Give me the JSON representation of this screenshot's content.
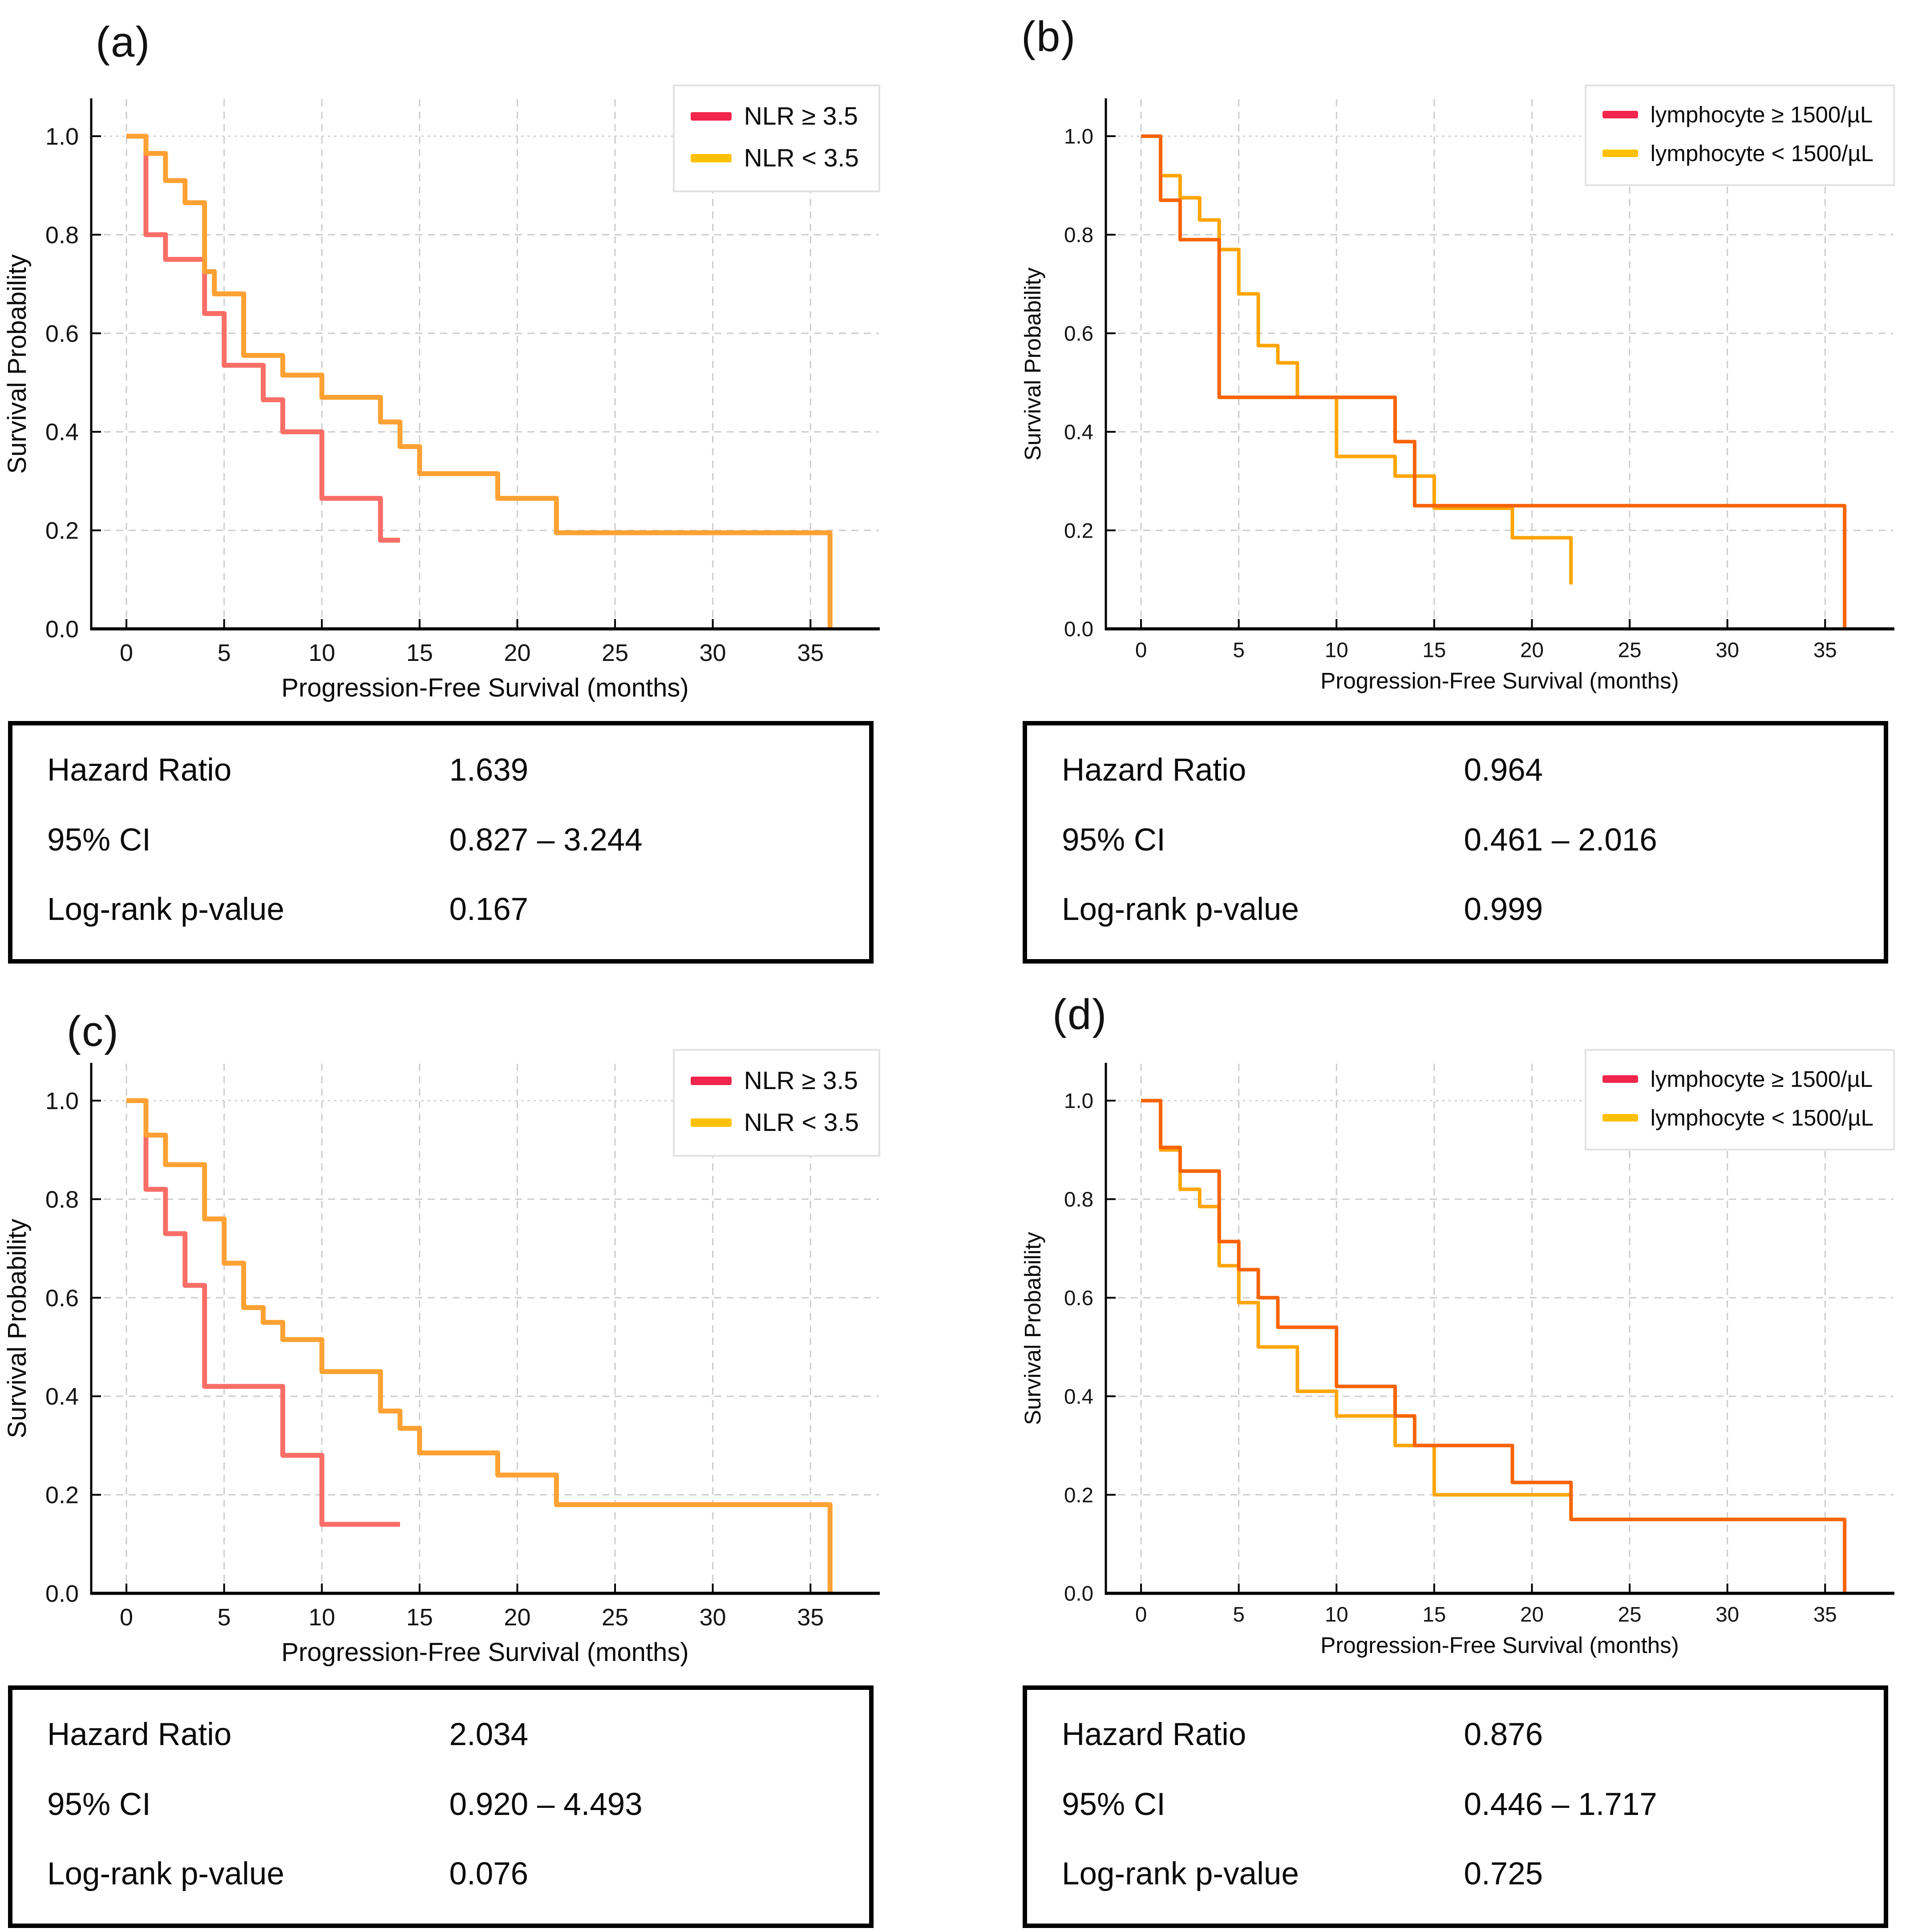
{
  "table_labels": {
    "hazard_ratio": "Hazard Ratio",
    "ci_95": "95% CI",
    "log_rank_p": "Log-rank p-value"
  },
  "chart_data": [
    {
      "type": "line",
      "subtype": "kaplan-meier-step",
      "panel": "(a)",
      "title": "",
      "xlabel": "Progression-Free Survival (months)",
      "ylabel": "Survival Probability",
      "x_ticks": [
        0,
        5,
        10,
        15,
        20,
        25,
        30,
        35
      ],
      "y_ticks": [
        "1.0",
        "0.8",
        "0.6",
        "0.4",
        "0.2",
        "0.0"
      ],
      "xlim": [
        -1.8,
        38.5
      ],
      "ylim": [
        0,
        1.075
      ],
      "grid": true,
      "legend_position": "upper right",
      "line_width": 11,
      "draw_order": [
        0,
        1
      ],
      "series": [
        {
          "name": "NLR ≥ 3.5",
          "legend_color": "#F2254C",
          "line_color": "#FB6E67",
          "steps": [
            [
              0,
              1.0
            ],
            [
              1,
              0.8
            ],
            [
              2,
              0.75
            ],
            [
              4,
              0.64
            ],
            [
              5,
              0.535
            ],
            [
              7,
              0.465
            ],
            [
              8,
              0.4
            ],
            [
              10,
              0.265
            ],
            [
              13,
              0.18
            ],
            [
              14,
              0.18
            ]
          ]
        },
        {
          "name": "NLR < 3.5",
          "legend_color": "#FFC107",
          "line_color": "#FFA133",
          "steps": [
            [
              0,
              1.0
            ],
            [
              1,
              0.965
            ],
            [
              2,
              0.91
            ],
            [
              3,
              0.865
            ],
            [
              4,
              0.725
            ],
            [
              4.5,
              0.68
            ],
            [
              6,
              0.555
            ],
            [
              8,
              0.515
            ],
            [
              10,
              0.47
            ],
            [
              13,
              0.42
            ],
            [
              14,
              0.37
            ],
            [
              15,
              0.315
            ],
            [
              19,
              0.265
            ],
            [
              22,
              0.195
            ],
            [
              36,
              0.0
            ]
          ]
        }
      ],
      "stats": {
        "hazard_ratio": "1.639",
        "ci_95": "0.827 – 3.244",
        "log_rank_p": "0.167"
      }
    },
    {
      "type": "line",
      "subtype": "kaplan-meier-step",
      "panel": "(b)",
      "title": "",
      "xlabel": "Progression-Free Survival (months)",
      "ylabel": "Survival Probability",
      "x_ticks": [
        0,
        5,
        10,
        15,
        20,
        25,
        30,
        35
      ],
      "y_ticks": [
        "1.0",
        "0.8",
        "0.6",
        "0.4",
        "0.2",
        "0.0"
      ],
      "xlim": [
        -1.8,
        38.5
      ],
      "ylim": [
        0,
        1.075
      ],
      "grid": true,
      "legend_position": "upper right",
      "line_width": 8,
      "draw_order": [
        1,
        0
      ],
      "series": [
        {
          "name": "lymphocyte ≥ 1500/µL",
          "legend_color": "#F2254C",
          "line_color": "#F96405",
          "steps": [
            [
              0,
              1.0
            ],
            [
              1,
              0.87
            ],
            [
              2,
              0.79
            ],
            [
              4,
              0.47
            ],
            [
              13,
              0.38
            ],
            [
              14,
              0.25
            ],
            [
              36,
              0.0
            ]
          ]
        },
        {
          "name": "lymphocyte < 1500/µL",
          "legend_color": "#FFC107",
          "line_color": "#FFA507",
          "steps": [
            [
              0,
              1.0
            ],
            [
              1,
              0.92
            ],
            [
              2,
              0.875
            ],
            [
              3,
              0.83
            ],
            [
              4,
              0.77
            ],
            [
              5,
              0.68
            ],
            [
              6,
              0.575
            ],
            [
              7,
              0.54
            ],
            [
              8,
              0.47
            ],
            [
              10,
              0.35
            ],
            [
              13,
              0.31
            ],
            [
              15,
              0.245
            ],
            [
              19,
              0.185
            ],
            [
              22,
              0.09
            ]
          ]
        }
      ],
      "stats": {
        "hazard_ratio": "0.964",
        "ci_95": "0.461 – 2.016",
        "log_rank_p": "0.999"
      }
    },
    {
      "type": "line",
      "subtype": "kaplan-meier-step",
      "panel": "(c)",
      "title": "",
      "xlabel": "Progression-Free Survival (months)",
      "ylabel": "Survival Probability",
      "x_ticks": [
        0,
        5,
        10,
        15,
        20,
        25,
        30,
        35
      ],
      "y_ticks": [
        "1.0",
        "0.8",
        "0.6",
        "0.4",
        "0.2",
        "0.0"
      ],
      "xlim": [
        -1.8,
        38.5
      ],
      "ylim": [
        0,
        1.075
      ],
      "grid": true,
      "legend_position": "upper right",
      "line_width": 11,
      "draw_order": [
        0,
        1
      ],
      "series": [
        {
          "name": "NLR ≥ 3.5",
          "legend_color": "#F2254C",
          "line_color": "#FB6E67",
          "steps": [
            [
              0,
              1.0
            ],
            [
              1,
              0.82
            ],
            [
              2,
              0.73
            ],
            [
              3,
              0.625
            ],
            [
              4,
              0.42
            ],
            [
              8,
              0.28
            ],
            [
              10,
              0.14
            ],
            [
              14,
              0.14
            ]
          ]
        },
        {
          "name": "NLR < 3.5",
          "legend_color": "#FFC107",
          "line_color": "#FFA133",
          "steps": [
            [
              0,
              1.0
            ],
            [
              1,
              0.93
            ],
            [
              2,
              0.87
            ],
            [
              4,
              0.76
            ],
            [
              5,
              0.67
            ],
            [
              6,
              0.58
            ],
            [
              7,
              0.55
            ],
            [
              8,
              0.515
            ],
            [
              10,
              0.45
            ],
            [
              13,
              0.37
            ],
            [
              14,
              0.335
            ],
            [
              15,
              0.285
            ],
            [
              19,
              0.24
            ],
            [
              22,
              0.18
            ],
            [
              36,
              0.0
            ]
          ]
        }
      ],
      "stats": {
        "hazard_ratio": "2.034",
        "ci_95": "0.920 – 4.493",
        "log_rank_p": "0.076"
      }
    },
    {
      "type": "line",
      "subtype": "kaplan-meier-step",
      "panel": "(d)",
      "title": "",
      "xlabel": "Progression-Free Survival (months)",
      "ylabel": "Survival Probability",
      "x_ticks": [
        0,
        5,
        10,
        15,
        20,
        25,
        30,
        35
      ],
      "y_ticks": [
        "1.0",
        "0.8",
        "0.6",
        "0.4",
        "0.2",
        "0.0"
      ],
      "xlim": [
        -1.8,
        38.5
      ],
      "ylim": [
        0,
        1.075
      ],
      "grid": true,
      "legend_position": "upper right",
      "line_width": 8,
      "draw_order": [
        1,
        0
      ],
      "series": [
        {
          "name": "lymphocyte ≥ 1500/µL",
          "legend_color": "#F2254C",
          "line_color": "#F96405",
          "steps": [
            [
              0,
              1.0
            ],
            [
              1,
              0.905
            ],
            [
              2,
              0.857
            ],
            [
              4,
              0.714
            ],
            [
              5,
              0.657
            ],
            [
              6,
              0.6
            ],
            [
              7,
              0.54
            ],
            [
              10,
              0.42
            ],
            [
              13,
              0.36
            ],
            [
              14,
              0.3
            ],
            [
              19,
              0.225
            ],
            [
              22,
              0.15
            ],
            [
              36,
              0.0
            ]
          ]
        },
        {
          "name": "lymphocyte < 1500/µL",
          "legend_color": "#FFC107",
          "line_color": "#FFA60D",
          "steps": [
            [
              0,
              1.0
            ],
            [
              1,
              0.9
            ],
            [
              2,
              0.82
            ],
            [
              3,
              0.785
            ],
            [
              4,
              0.665
            ],
            [
              5,
              0.59
            ],
            [
              6,
              0.5
            ],
            [
              8,
              0.41
            ],
            [
              10,
              0.36
            ],
            [
              13,
              0.3
            ],
            [
              15,
              0.2
            ],
            [
              22,
              0.2
            ]
          ]
        }
      ],
      "stats": {
        "hazard_ratio": "0.876",
        "ci_95": "0.446 – 1.717",
        "log_rank_p": "0.725"
      }
    }
  ]
}
